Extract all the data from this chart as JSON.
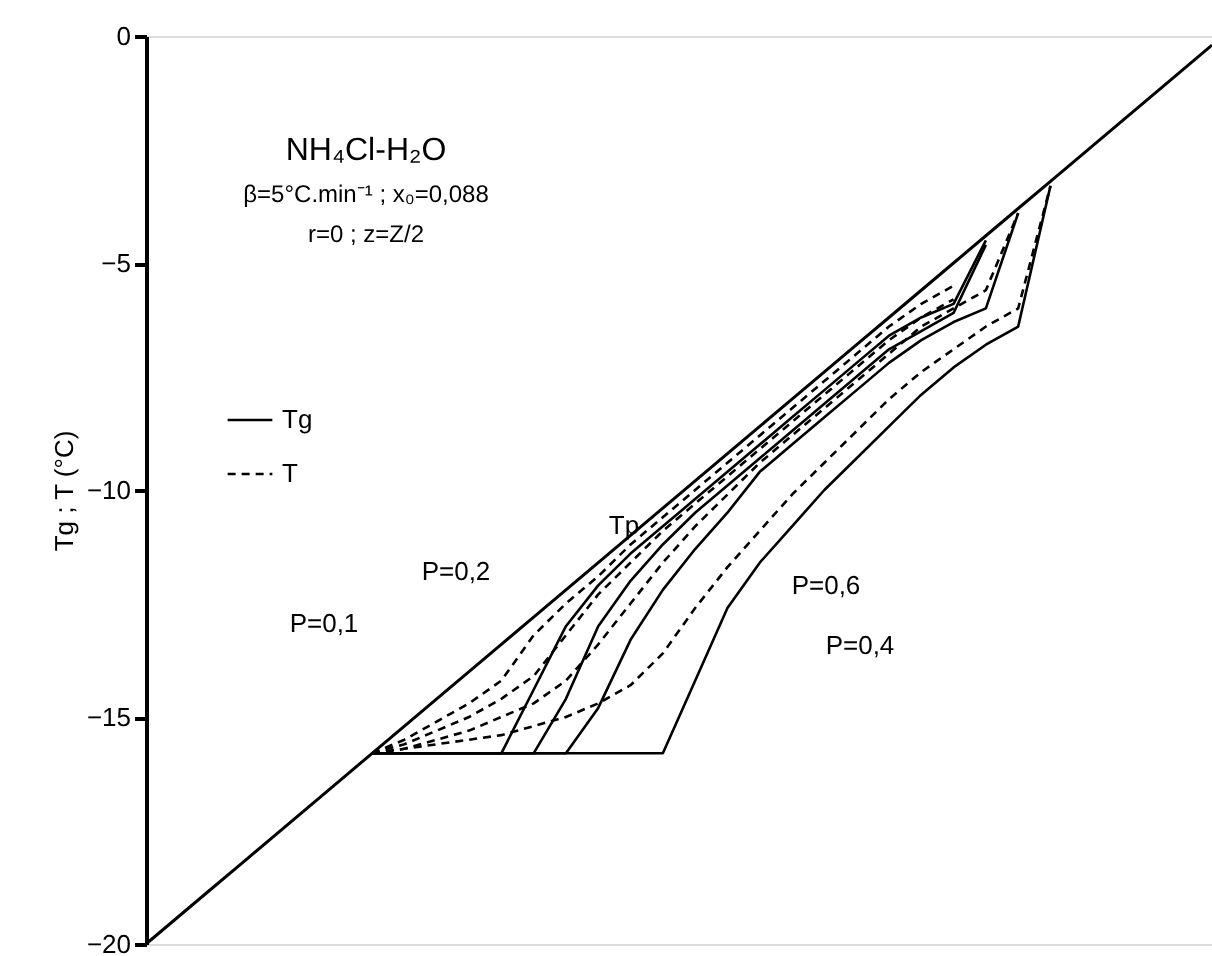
{
  "chart_data": {
    "type": "line",
    "title": "NH₄Cl-H₂O",
    "subtitle": [
      "β=5°C.min⁻¹ ; x₀=0,088",
      "r=0 ; z=Z/2"
    ],
    "ylabel": "Tg ; T (°C)",
    "categories": [
      null,
      null,
      null,
      null,
      null,
      null,
      null,
      null,
      null,
      null,
      null,
      null,
      null,
      null,
      null,
      null,
      null,
      null,
      null,
      null,
      null,
      null,
      null,
      null,
      null,
      null,
      null,
      null,
      null,
      null,
      null,
      null,
      null,
      null
    ],
    "series": [
      {
        "name": "Tp",
        "color": "#000000",
        "line_style": "solid",
        "values": [
          -20,
          -19.4,
          -18.8,
          -18.2,
          -17.6,
          -17.0,
          -16.4,
          -15.8,
          -15.2,
          -14.6,
          -14.0,
          -13.4,
          -12.8,
          -12.2,
          -11.6,
          -11.0,
          -10.4,
          -9.8,
          -9.2,
          -8.6,
          -8.0,
          -7.4,
          -6.8,
          -6.2,
          -5.6,
          -5.0,
          -4.4,
          -3.8,
          -3.2,
          -2.6,
          -2.0,
          -1.4,
          -0.8,
          -0.2
        ]
      },
      {
        "name": "Tg",
        "color": "#000000",
        "line_style": "solid",
        "values": [
          null,
          null,
          null,
          null,
          null,
          null,
          null,
          -15.8,
          -15.8,
          -15.8,
          -15.8,
          -15.8,
          -14.4,
          -13.0,
          -12.1,
          -11.4,
          -10.8,
          -10.2,
          -9.6,
          -9.0,
          -8.4,
          -7.8,
          -7.2,
          -6.6,
          -6.2,
          -5.9,
          -4.5,
          null,
          null,
          null,
          null,
          null,
          null,
          null
        ]
      },
      {
        "color": "#000000",
        "line_style": "solid",
        "values": [
          null,
          null,
          null,
          null,
          null,
          null,
          null,
          -15.8,
          -15.8,
          -15.8,
          -15.8,
          -15.8,
          -15.8,
          -14.6,
          -13.0,
          -12.0,
          -11.2,
          -10.5,
          -9.9,
          -9.3,
          -8.7,
          -8.1,
          -7.5,
          -6.9,
          -6.5,
          -6.1,
          -4.6,
          null,
          null,
          null,
          null,
          null,
          null,
          null
        ]
      },
      {
        "color": "#000000",
        "line_style": "solid",
        "values": [
          null,
          null,
          null,
          null,
          null,
          null,
          null,
          -15.8,
          -15.8,
          -15.8,
          -15.8,
          -15.8,
          -15.8,
          -15.8,
          -14.8,
          -13.3,
          -12.2,
          -11.3,
          -10.5,
          -9.6,
          -9.0,
          -8.4,
          -7.8,
          -7.2,
          -6.7,
          -6.3,
          -6.0,
          -3.9,
          null,
          null,
          null,
          null,
          null,
          null
        ]
      },
      {
        "color": "#000000",
        "line_style": "solid",
        "values": [
          null,
          null,
          null,
          null,
          null,
          null,
          null,
          -15.8,
          -15.8,
          -15.8,
          -15.8,
          -15.8,
          -15.8,
          -15.8,
          -15.8,
          -15.8,
          -15.8,
          -14.2,
          -12.6,
          -11.6,
          -10.8,
          -10.0,
          -9.3,
          -8.6,
          -7.9,
          -7.3,
          -6.8,
          -6.4,
          -3.3,
          null,
          null,
          null,
          null,
          null
        ]
      },
      {
        "name": "T",
        "color": "#000000",
        "line_style": "dashed",
        "values": [
          null,
          null,
          null,
          null,
          null,
          null,
          null,
          -15.8,
          -15.5,
          -15.1,
          -14.7,
          -14.2,
          -13.2,
          -12.5,
          -11.9,
          -11.2,
          -10.6,
          -10.0,
          -9.4,
          -8.8,
          -8.2,
          -7.6,
          -7.0,
          -6.4,
          -5.9,
          -5.5,
          null,
          null,
          null,
          null,
          null,
          null,
          null,
          null
        ]
      },
      {
        "color": "#000000",
        "line_style": "dashed",
        "values": [
          null,
          null,
          null,
          null,
          null,
          null,
          null,
          -15.8,
          -15.6,
          -15.3,
          -15.0,
          -14.6,
          -14.1,
          -13.2,
          -12.3,
          -11.6,
          -10.9,
          -10.3,
          -9.7,
          -9.1,
          -8.5,
          -7.9,
          -7.3,
          -6.7,
          -6.2,
          -5.8,
          null,
          null,
          null,
          null,
          null,
          null,
          null,
          null
        ]
      },
      {
        "color": "#000000",
        "line_style": "dashed",
        "values": [
          null,
          null,
          null,
          null,
          null,
          null,
          null,
          -15.8,
          -15.7,
          -15.5,
          -15.3,
          -15.0,
          -14.7,
          -14.2,
          -13.4,
          -12.5,
          -11.6,
          -10.8,
          -10.1,
          -9.4,
          -8.8,
          -8.2,
          -7.6,
          -7.0,
          -6.4,
          -6.0,
          -5.6,
          -3.9,
          null,
          null,
          null,
          null,
          null,
          null
        ]
      },
      {
        "color": "#000000",
        "line_style": "dashed",
        "values": [
          null,
          null,
          null,
          null,
          null,
          null,
          null,
          -15.8,
          -15.7,
          -15.6,
          -15.5,
          -15.4,
          -15.2,
          -15.0,
          -14.7,
          -14.3,
          -13.6,
          -12.6,
          -11.7,
          -10.9,
          -10.1,
          -9.4,
          -8.7,
          -8.0,
          -7.4,
          -6.9,
          -6.4,
          -6.0,
          -3.3,
          null,
          null,
          null,
          null,
          null
        ]
      }
    ],
    "annotations": [
      "P=0,1",
      "P=0,2",
      "P=0,4",
      "P=0,6"
    ],
    "ylim": [
      -20,
      0
    ],
    "yticks": [
      -20,
      -15,
      -10,
      -5,
      0
    ],
    "tick_labels": "y",
    "grid": false,
    "legend": "top left"
  }
}
